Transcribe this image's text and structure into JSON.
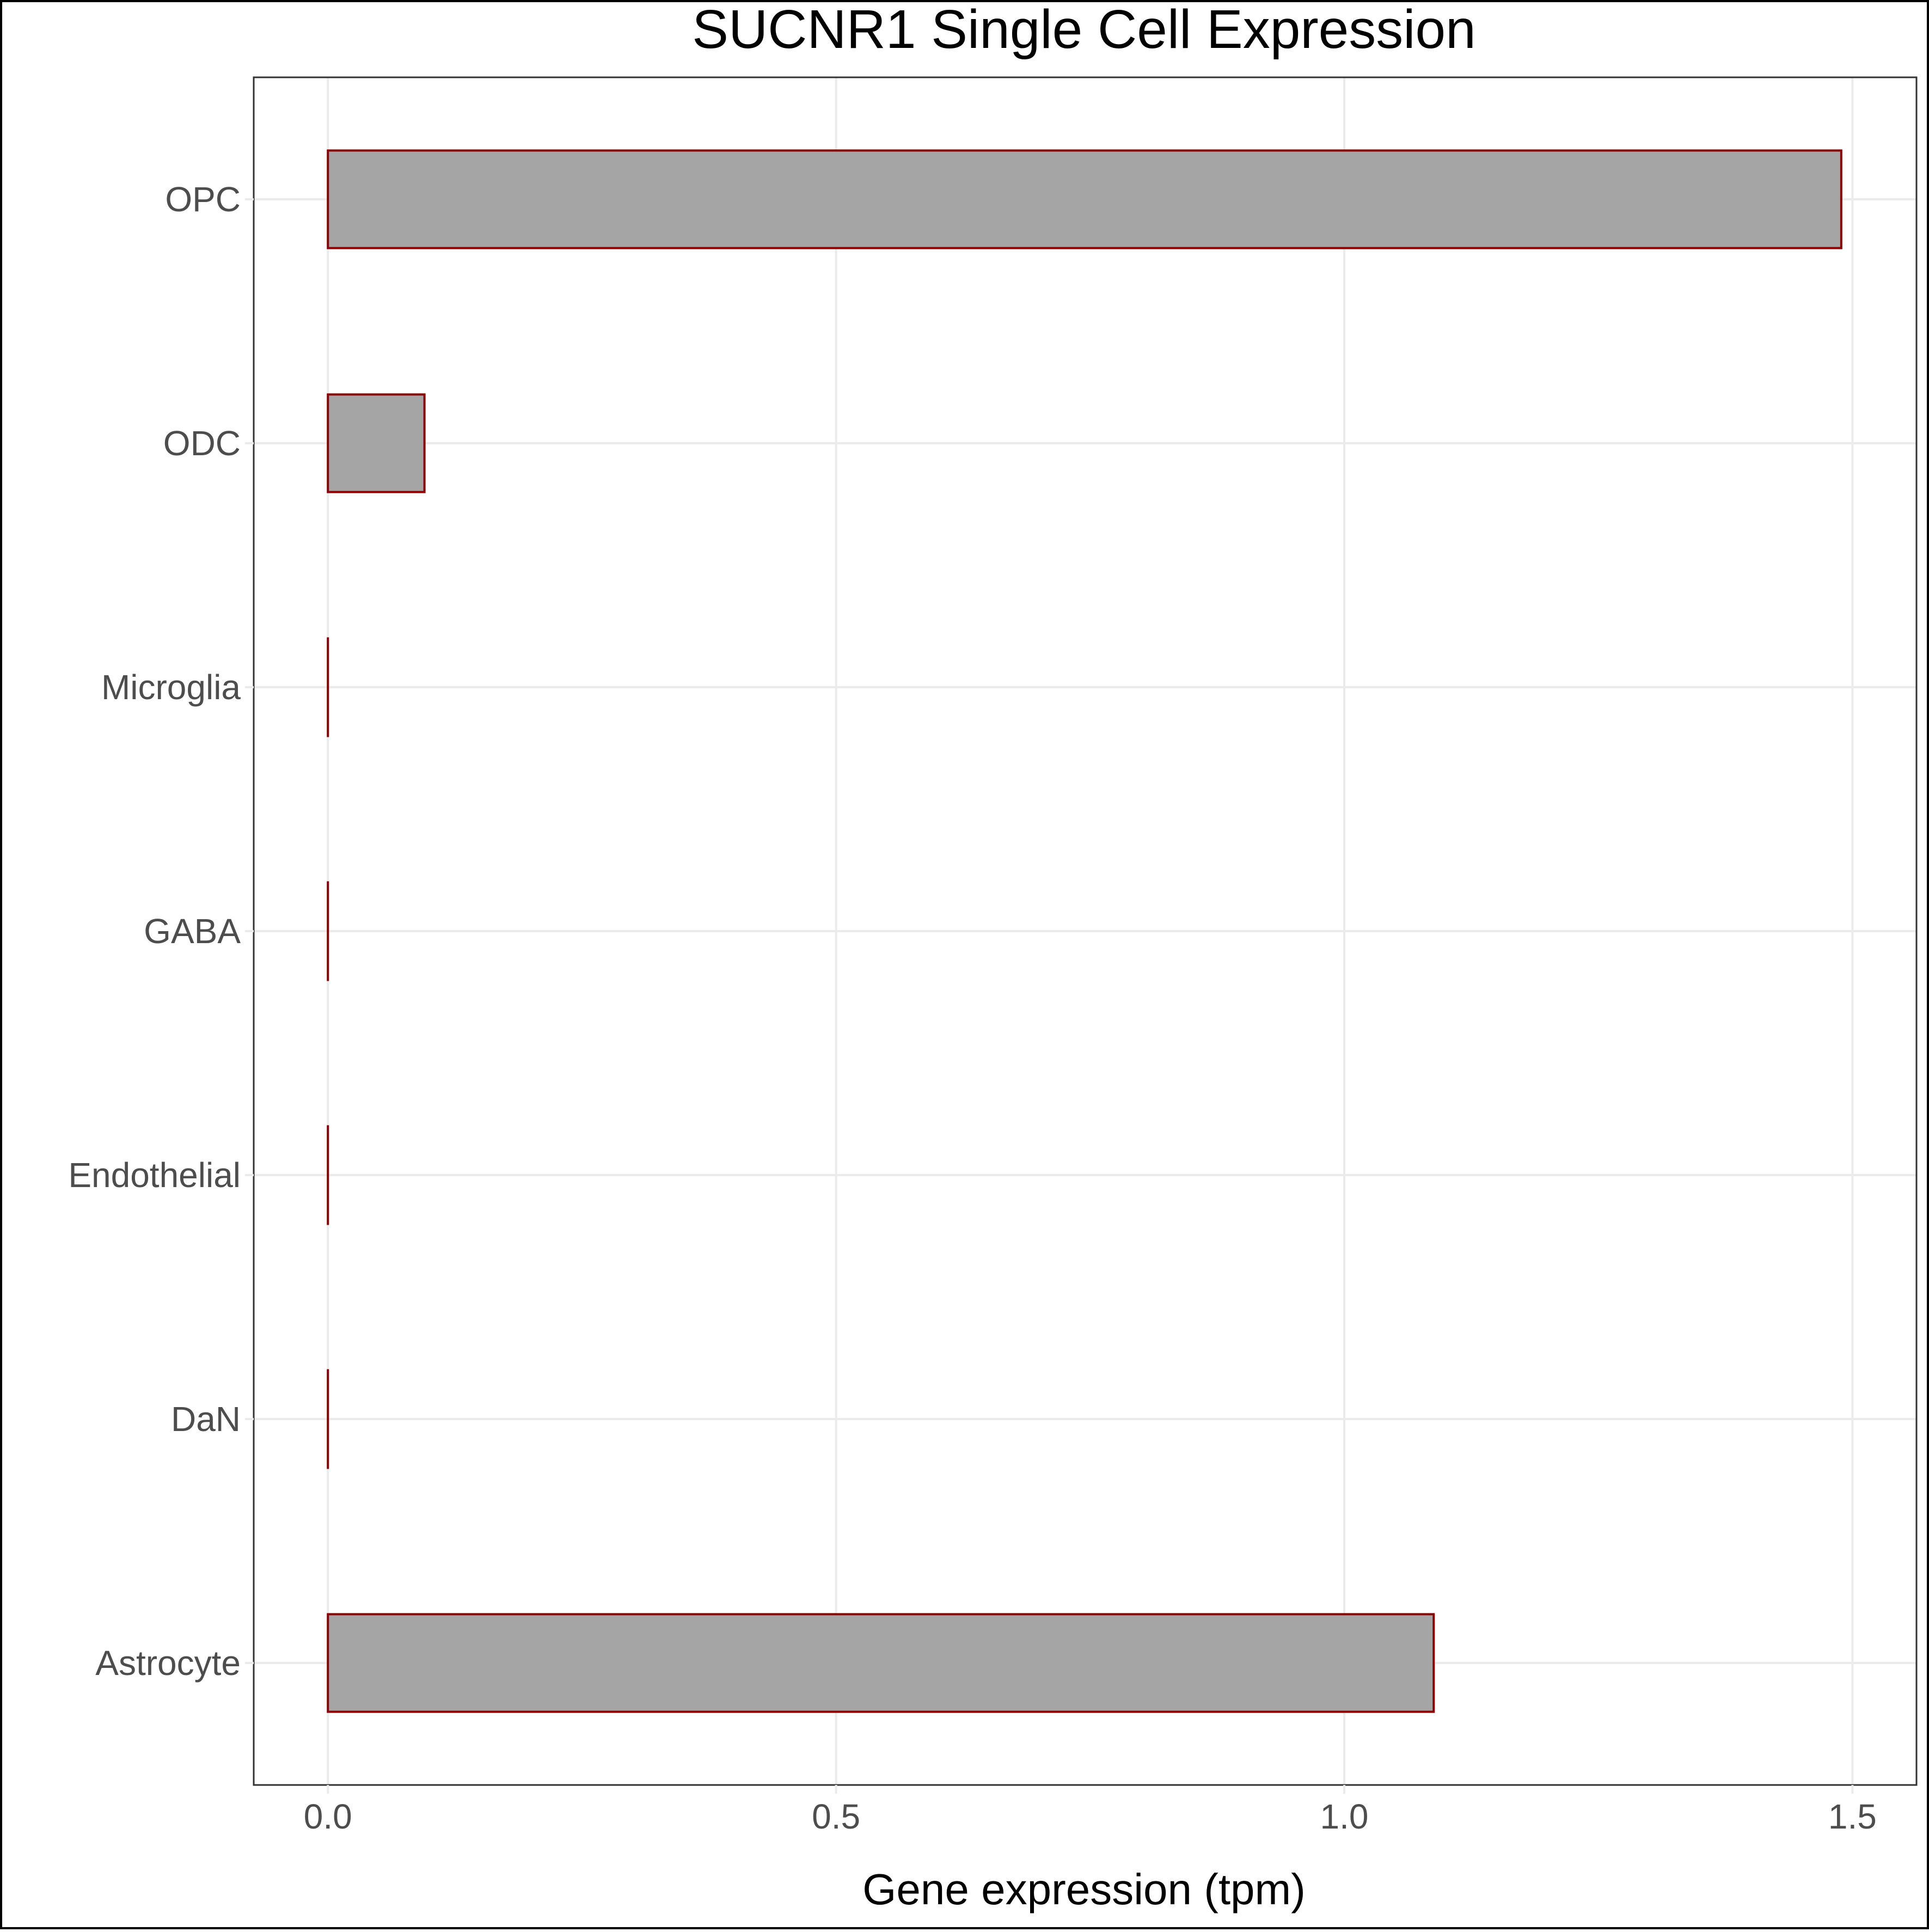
{
  "chart_data": {
    "type": "bar",
    "orientation": "horizontal",
    "title": "SUCNR1 Single Cell Expression",
    "xlabel": "Gene expression (tpm)",
    "ylabel": "",
    "categories": [
      "Astrocyte",
      "DaN",
      "Endothelial",
      "GABA",
      "Microglia",
      "ODC",
      "OPC"
    ],
    "values": [
      1.088,
      0.0,
      0.0,
      0.0,
      0.0,
      0.095,
      1.489
    ],
    "xlim": [
      -0.073,
      1.563
    ],
    "xticks": [
      0.0,
      0.5,
      1.0,
      1.5
    ],
    "xtick_labels": [
      "0.0",
      "0.5",
      "1.0",
      "1.5"
    ],
    "grid": true,
    "bar_fill": "#a5a5a5",
    "bar_stroke": "#8b0000",
    "grid_color": "#ebebeb",
    "text_color": "#4d4d4d"
  }
}
